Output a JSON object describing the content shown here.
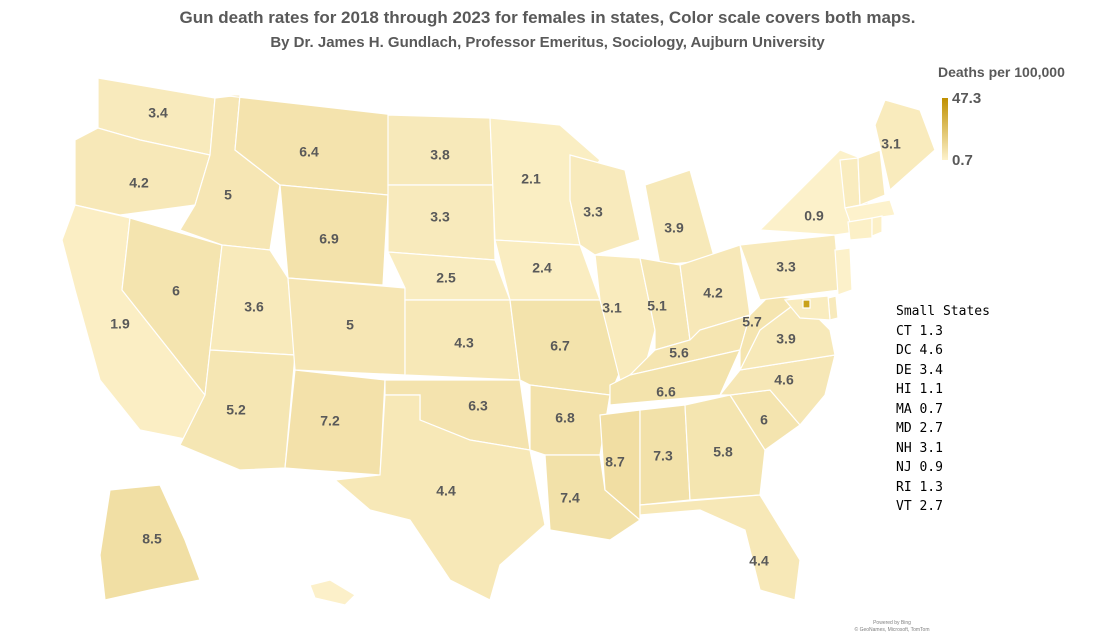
{
  "title": "Gun death rates for 2018 through 2023 for females in states, Color scale covers both maps.",
  "subtitle": "By Dr. James H. Gundlach, Professor Emeritus, Sociology, Aujburn University",
  "legend": {
    "title": "Deaths per 100,000",
    "max_label": "47.3",
    "min_label": "0.7",
    "max_value": 47.3,
    "min_value": 0.7,
    "color_low": "#fdf2cc",
    "color_high": "#bf9000"
  },
  "state_values": [
    {
      "state": "WA",
      "value": 3.4
    },
    {
      "state": "OR",
      "value": 4.2
    },
    {
      "state": "CA",
      "value": 1.9
    },
    {
      "state": "NV",
      "value": 6
    },
    {
      "state": "ID",
      "value": 5
    },
    {
      "state": "MT",
      "value": 6.4
    },
    {
      "state": "WY",
      "value": 6.9
    },
    {
      "state": "UT",
      "value": 3.6
    },
    {
      "state": "AZ",
      "value": 5.2
    },
    {
      "state": "CO",
      "value": 5
    },
    {
      "state": "NM",
      "value": 7.2
    },
    {
      "state": "ND",
      "value": 3.8
    },
    {
      "state": "SD",
      "value": 3.3
    },
    {
      "state": "NE",
      "value": 2.5
    },
    {
      "state": "KS",
      "value": 4.3
    },
    {
      "state": "OK",
      "value": 6.3
    },
    {
      "state": "TX",
      "value": 4.4
    },
    {
      "state": "MN",
      "value": 2.1
    },
    {
      "state": "IA",
      "value": 2.4
    },
    {
      "state": "MO",
      "value": 6.7
    },
    {
      "state": "AR",
      "value": 6.8
    },
    {
      "state": "LA",
      "value": 7.4
    },
    {
      "state": "WI",
      "value": 3.3
    },
    {
      "state": "IL",
      "value": 3.1
    },
    {
      "state": "MI",
      "value": 3.9
    },
    {
      "state": "IN",
      "value": 5.1
    },
    {
      "state": "OH",
      "value": 4.2
    },
    {
      "state": "KY",
      "value": 5.6
    },
    {
      "state": "TN",
      "value": 6.6
    },
    {
      "state": "MS",
      "value": 8.7
    },
    {
      "state": "AL",
      "value": 7.3
    },
    {
      "state": "GA",
      "value": 5.8
    },
    {
      "state": "FL",
      "value": 4.4
    },
    {
      "state": "SC",
      "value": 6
    },
    {
      "state": "NC",
      "value": 4.6
    },
    {
      "state": "VA",
      "value": 3.9
    },
    {
      "state": "WV",
      "value": 5.7
    },
    {
      "state": "PA",
      "value": 3.3
    },
    {
      "state": "NY",
      "value": 0.9
    },
    {
      "state": "ME",
      "value": 3.1
    },
    {
      "state": "AK",
      "value": 8.5
    },
    {
      "state": "HI",
      "value": 1.1
    },
    {
      "state": "VT",
      "value": 2.7
    },
    {
      "state": "NH",
      "value": 3.1
    },
    {
      "state": "MA",
      "value": 0.7
    },
    {
      "state": "CT",
      "value": 1.3
    },
    {
      "state": "RI",
      "value": 1.3
    },
    {
      "state": "NJ",
      "value": 0.9
    },
    {
      "state": "DE",
      "value": 3.4
    },
    {
      "state": "MD",
      "value": 2.7
    },
    {
      "state": "DC",
      "value": 4.6
    }
  ],
  "small_states": {
    "heading": "Small States",
    "items": [
      "CT 1.3",
      "DC 4.6",
      "DE 3.4",
      "HI 1.1",
      "MA 0.7",
      "MD 2.7",
      "NH 3.1",
      "NJ 0.9",
      "RI 1.3",
      "VT 2.7"
    ]
  },
  "attribution": {
    "line1": "Powered by Bing",
    "line2": "© GeoNames, Microsoft, TomTom"
  }
}
